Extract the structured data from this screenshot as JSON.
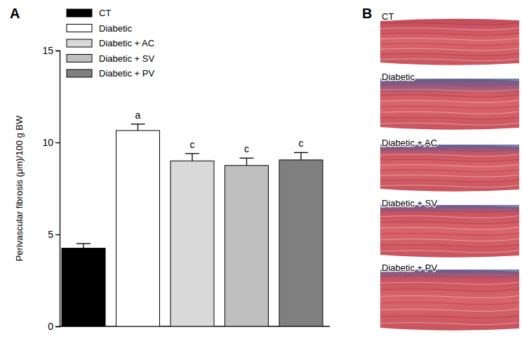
{
  "chart_data": {
    "type": "bar",
    "y_label": "Perivascular fibrosis (μm)/100 g BW",
    "categories": [
      "CT",
      "Diabetic",
      "Diabetic + AC",
      "Diabetic + SV",
      "Diabetic + PV"
    ],
    "values": [
      4.25,
      10.65,
      9.0,
      8.75,
      9.05
    ],
    "errors": [
      0.25,
      0.35,
      0.4,
      0.4,
      0.4
    ],
    "annotations": [
      null,
      "a",
      "c",
      "c",
      "c"
    ],
    "colors": [
      "#000000",
      "#ffffff",
      "#d9d9d9",
      "#bfbfbf",
      "#808080"
    ],
    "ylim": [
      0,
      15
    ],
    "yticks": [
      0,
      5,
      10,
      15
    ],
    "legend": "upper left",
    "tick_labels": "y",
    "grid": false
  },
  "figure": {
    "panels": [
      "A",
      "B"
    ],
    "image_labels": [
      "CT",
      "Diabetic",
      "Diabetic + AC",
      "Diabetic + SV",
      "Diabetic + PV"
    ]
  }
}
